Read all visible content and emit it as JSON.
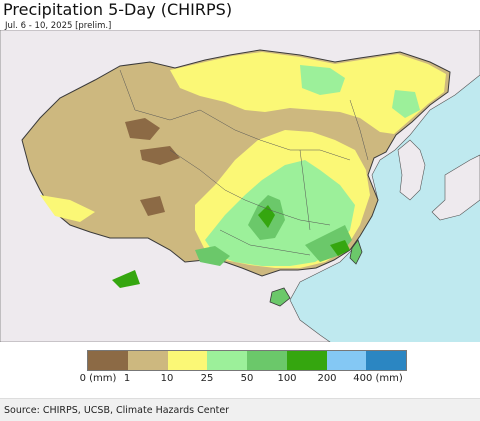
{
  "title": "Precipitation 5-Day (CHIRPS)",
  "subtitle": "Jul. 6 - 10, 2025 [prelim.]",
  "colors": {
    "ocean": "#bfe9ef",
    "outside_land": "#eeeaee",
    "border": "#3a3a3a"
  },
  "legend": {
    "bins": [
      {
        "from": 0,
        "to": 1,
        "color": "#8c6a45"
      },
      {
        "from": 1,
        "to": 10,
        "color": "#cdb87f"
      },
      {
        "from": 10,
        "to": 25,
        "color": "#fbf876"
      },
      {
        "from": 25,
        "to": 50,
        "color": "#9cf09a"
      },
      {
        "from": 50,
        "to": 100,
        "color": "#6bc86a"
      },
      {
        "from": 100,
        "to": 200,
        "color": "#35a60f"
      },
      {
        "from": 200,
        "to": 400,
        "color": "#84c8f4"
      },
      {
        "from": 400,
        "to": null,
        "color": "#2b86c2"
      }
    ],
    "tick_labels": [
      "0 (mm)",
      "1",
      "10",
      "25",
      "50",
      "100",
      "200",
      "400 (mm)"
    ]
  },
  "source": "Source: CHIRPS, UCSB, Climate Hazards Center"
}
